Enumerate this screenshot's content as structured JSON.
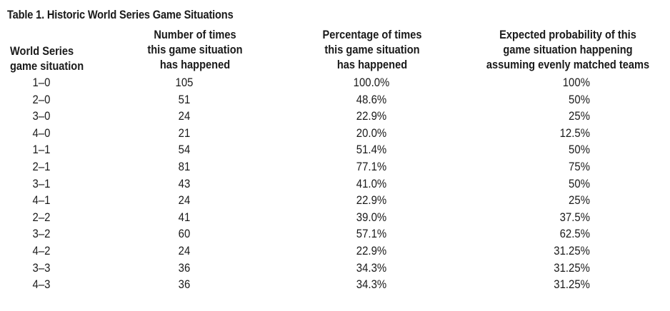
{
  "table": {
    "title": "Table 1.  Historic World Series Game Situations",
    "columns": [
      {
        "lines": [
          "World Series",
          "game situation"
        ]
      },
      {
        "lines": [
          "Number of times",
          "this game situation",
          "has happened"
        ]
      },
      {
        "lines": [
          "Percentage of times",
          "this game situation",
          "has happened"
        ]
      },
      {
        "lines": [
          "Expected probability of this",
          "game situation happening",
          "assuming evenly matched teams"
        ]
      }
    ],
    "rows": [
      [
        "1–0",
        "105",
        "100.0%",
        "100%"
      ],
      [
        "2–0",
        "51",
        "48.6%",
        "50%"
      ],
      [
        "3–0",
        "24",
        "22.9%",
        "25%"
      ],
      [
        "4–0",
        "21",
        "20.0%",
        "12.5%"
      ],
      [
        "1–1",
        "54",
        "51.4%",
        "50%"
      ],
      [
        "2–1",
        "81",
        "77.1%",
        "75%"
      ],
      [
        "3–1",
        "43",
        "41.0%",
        "50%"
      ],
      [
        "4–1",
        "24",
        "22.9%",
        "25%"
      ],
      [
        "2–2",
        "41",
        "39.0%",
        "37.5%"
      ],
      [
        "3–2",
        "60",
        "57.1%",
        "62.5%"
      ],
      [
        "4–2",
        "24",
        "22.9%",
        "31.25%"
      ],
      [
        "3–3",
        "36",
        "34.3%",
        "31.25%"
      ],
      [
        "4–3",
        "36",
        "34.3%",
        "31.25%"
      ]
    ]
  }
}
